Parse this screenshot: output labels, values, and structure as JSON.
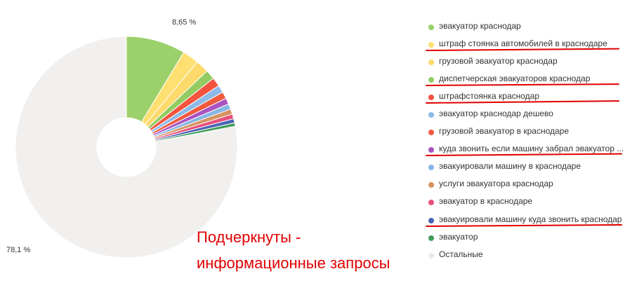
{
  "chart_data": {
    "type": "pie",
    "donut": true,
    "labels": {
      "top": "8,65 %",
      "left": "78,1 %"
    },
    "slices": [
      {
        "name": "эвакуатор краснодар",
        "value": 8.65,
        "color": "#9cd06a",
        "underlined": false
      },
      {
        "name": "штраф стоянка автомобилей в краснодаре",
        "value": 2.4,
        "color": "#fde071",
        "underlined": true
      },
      {
        "name": "грузовой эвакуатор краснодар",
        "value": 1.9,
        "color": "#fbd96a",
        "underlined": false
      },
      {
        "name": "диспетчерская эвакуаторов краснодар",
        "value": 1.4,
        "color": "#93cc63",
        "underlined": true
      },
      {
        "name": "штрафстоянка краснодар",
        "value": 1.3,
        "color": "#f4533e",
        "underlined": true
      },
      {
        "name": "эвакуатор краснодар дешево",
        "value": 1.1,
        "color": "#8dbbe8",
        "underlined": false
      },
      {
        "name": "грузовой эвакуатор в краснодаре",
        "value": 1.0,
        "color": "#f0593e",
        "underlined": false
      },
      {
        "name": "куда звонить если машину забрал эвакуатор ...",
        "value": 0.9,
        "color": "#aa53c0",
        "underlined": true
      },
      {
        "name": "эвакуировали машину в краснодаре",
        "value": 0.8,
        "color": "#88b6e4",
        "underlined": false
      },
      {
        "name": "услуги эвакуатора краснодар",
        "value": 0.75,
        "color": "#d7925f",
        "underlined": false
      },
      {
        "name": "эвакуатор в краснодаре",
        "value": 0.7,
        "color": "#e8507c",
        "underlined": false
      },
      {
        "name": "эвакуировали машину куда звонить краснодар",
        "value": 0.6,
        "color": "#4a62b5",
        "underlined": true
      },
      {
        "name": "эвакуатор",
        "value": 0.5,
        "color": "#3f9d57",
        "underlined": false
      },
      {
        "name": "Остальные",
        "value": 78.1,
        "color": "#f1f0ee",
        "underlined": false
      }
    ]
  },
  "annotation": {
    "line1": "Подчеркнуты -",
    "line2": "информационные запросы"
  }
}
